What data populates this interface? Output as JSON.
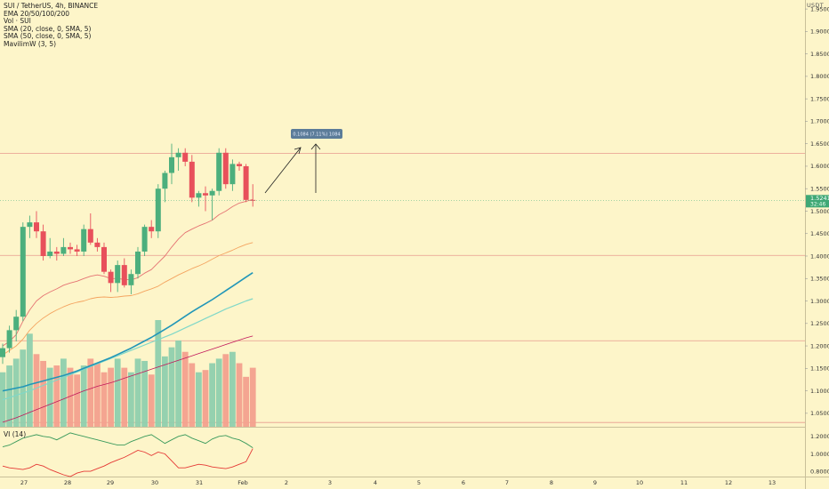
{
  "legend": {
    "symbol": "SUI / TetherUS, 4h, BINANCE",
    "lines": [
      "EMA 20/50/100/200",
      "Vol · SUI",
      "SMA (20, close, 0, SMA, 5)",
      "SMA (50, close, 0, SMA, 5)",
      "MavilimW (3, 5)"
    ]
  },
  "vi_label": "VI (14)",
  "currency": "USDT",
  "price_axis": [
    "1.9500",
    "1.9000",
    "1.8500",
    "1.8000",
    "1.7500",
    "1.7000",
    "1.6500",
    "1.6000",
    "1.5500",
    "1.5000",
    "1.4500",
    "1.4000",
    "1.3500",
    "1.3000",
    "1.2500",
    "1.2000",
    "1.1500",
    "1.1000",
    "1.0500"
  ],
  "vi_axis": [
    "1.2000",
    "1.0000",
    "0.8000"
  ],
  "time_axis": [
    "27",
    "28",
    "29",
    "30",
    "31",
    "Feb",
    "2",
    "3",
    "4",
    "5",
    "6",
    "7",
    "8",
    "9",
    "10",
    "11",
    "12",
    "13"
  ],
  "price_label": {
    "price": "1.5241",
    "countdown": "32:46"
  },
  "measure_label": "0.1084 (7.11%) 1084",
  "colors": {
    "up": "#4caf7d",
    "down": "#e8505b",
    "ema_blue": "#2196b8",
    "ema_orange": "#f4a460",
    "ema_teal": "#80d8c8",
    "ema_red": "#e57373",
    "bg": "#fdf5c9"
  },
  "chart_data": {
    "type": "candlestick",
    "interval": "4h",
    "y_range": [
      1.02,
      1.97
    ],
    "horizontal_levels": [
      1.6288,
      1.4015,
      1.2115,
      1.0295
    ],
    "candles": [
      {
        "o": 1.175,
        "h": 1.205,
        "l": 1.16,
        "c": 1.195
      },
      {
        "o": 1.195,
        "h": 1.245,
        "l": 1.185,
        "c": 1.235
      },
      {
        "o": 1.235,
        "h": 1.28,
        "l": 1.21,
        "c": 1.265
      },
      {
        "o": 1.265,
        "h": 1.475,
        "l": 1.255,
        "c": 1.465
      },
      {
        "o": 1.465,
        "h": 1.49,
        "l": 1.44,
        "c": 1.475
      },
      {
        "o": 1.475,
        "h": 1.5,
        "l": 1.44,
        "c": 1.455
      },
      {
        "o": 1.455,
        "h": 1.47,
        "l": 1.39,
        "c": 1.4
      },
      {
        "o": 1.4,
        "h": 1.44,
        "l": 1.395,
        "c": 1.41
      },
      {
        "o": 1.41,
        "h": 1.42,
        "l": 1.39,
        "c": 1.405
      },
      {
        "o": 1.405,
        "h": 1.44,
        "l": 1.4,
        "c": 1.42
      },
      {
        "o": 1.42,
        "h": 1.43,
        "l": 1.405,
        "c": 1.415
      },
      {
        "o": 1.415,
        "h": 1.425,
        "l": 1.4,
        "c": 1.41
      },
      {
        "o": 1.41,
        "h": 1.47,
        "l": 1.4,
        "c": 1.46
      },
      {
        "o": 1.46,
        "h": 1.495,
        "l": 1.425,
        "c": 1.43
      },
      {
        "o": 1.43,
        "h": 1.44,
        "l": 1.41,
        "c": 1.42
      },
      {
        "o": 1.42,
        "h": 1.43,
        "l": 1.36,
        "c": 1.365
      },
      {
        "o": 1.365,
        "h": 1.37,
        "l": 1.32,
        "c": 1.34
      },
      {
        "o": 1.34,
        "h": 1.39,
        "l": 1.32,
        "c": 1.38
      },
      {
        "o": 1.38,
        "h": 1.395,
        "l": 1.33,
        "c": 1.335
      },
      {
        "o": 1.335,
        "h": 1.37,
        "l": 1.315,
        "c": 1.36
      },
      {
        "o": 1.36,
        "h": 1.42,
        "l": 1.35,
        "c": 1.41
      },
      {
        "o": 1.41,
        "h": 1.47,
        "l": 1.4,
        "c": 1.465
      },
      {
        "o": 1.465,
        "h": 1.48,
        "l": 1.44,
        "c": 1.455
      },
      {
        "o": 1.455,
        "h": 1.56,
        "l": 1.44,
        "c": 1.55
      },
      {
        "o": 1.55,
        "h": 1.59,
        "l": 1.52,
        "c": 1.585
      },
      {
        "o": 1.585,
        "h": 1.65,
        "l": 1.56,
        "c": 1.62
      },
      {
        "o": 1.62,
        "h": 1.64,
        "l": 1.59,
        "c": 1.63
      },
      {
        "o": 1.63,
        "h": 1.64,
        "l": 1.6,
        "c": 1.61
      },
      {
        "o": 1.61,
        "h": 1.625,
        "l": 1.52,
        "c": 1.53
      },
      {
        "o": 1.53,
        "h": 1.545,
        "l": 1.51,
        "c": 1.54
      },
      {
        "o": 1.54,
        "h": 1.555,
        "l": 1.5,
        "c": 1.535
      },
      {
        "o": 1.535,
        "h": 1.55,
        "l": 1.48,
        "c": 1.545
      },
      {
        "o": 1.545,
        "h": 1.64,
        "l": 1.535,
        "c": 1.63
      },
      {
        "o": 1.63,
        "h": 1.64,
        "l": 1.55,
        "c": 1.56
      },
      {
        "o": 1.56,
        "h": 1.615,
        "l": 1.545,
        "c": 1.605
      },
      {
        "o": 1.605,
        "h": 1.61,
        "l": 1.59,
        "c": 1.6
      },
      {
        "o": 1.6,
        "h": 1.605,
        "l": 1.52,
        "c": 1.525
      },
      {
        "o": 1.525,
        "h": 1.56,
        "l": 1.51,
        "c": 1.524
      }
    ],
    "volume": [
      240,
      270,
      300,
      340,
      410,
      320,
      290,
      260,
      270,
      300,
      260,
      230,
      270,
      300,
      280,
      240,
      260,
      300,
      260,
      240,
      300,
      290,
      230,
      470,
      310,
      350,
      380,
      330,
      280,
      240,
      250,
      280,
      300,
      320,
      330,
      280,
      220,
      260
    ],
    "vi_plus": [
      1.08,
      1.1,
      1.14,
      1.18,
      1.2,
      1.22,
      1.2,
      1.19,
      1.16,
      1.2,
      1.24,
      1.22,
      1.2,
      1.18,
      1.16,
      1.14,
      1.12,
      1.1,
      1.1,
      1.14,
      1.17,
      1.2,
      1.22,
      1.17,
      1.12,
      1.16,
      1.2,
      1.22,
      1.18,
      1.15,
      1.12,
      1.17,
      1.2,
      1.21,
      1.18,
      1.16,
      1.12,
      1.07
    ],
    "vi_minus": [
      0.86,
      0.84,
      0.83,
      0.82,
      0.84,
      0.88,
      0.86,
      0.82,
      0.79,
      0.76,
      0.74,
      0.78,
      0.8,
      0.8,
      0.83,
      0.86,
      0.9,
      0.93,
      0.96,
      1.0,
      1.04,
      1.02,
      0.98,
      1.02,
      1.0,
      0.92,
      0.84,
      0.84,
      0.86,
      0.88,
      0.87,
      0.85,
      0.84,
      0.83,
      0.85,
      0.88,
      0.91,
      1.06
    ],
    "vi_range": [
      0.75,
      1.3
    ],
    "ema_blue": [
      1.1,
      1.103,
      1.106,
      1.109,
      1.114,
      1.118,
      1.122,
      1.126,
      1.13,
      1.134,
      1.139,
      1.144,
      1.15,
      1.156,
      1.162,
      1.168,
      1.174,
      1.181,
      1.188,
      1.195,
      1.203,
      1.211,
      1.219,
      1.228,
      1.237,
      1.246,
      1.256,
      1.266,
      1.276,
      1.285,
      1.294,
      1.303,
      1.313,
      1.323,
      1.333,
      1.343,
      1.353,
      1.363
    ],
    "ema_orange": [
      1.18,
      1.19,
      1.2,
      1.215,
      1.235,
      1.25,
      1.262,
      1.272,
      1.28,
      1.287,
      1.293,
      1.297,
      1.3,
      1.305,
      1.308,
      1.309,
      1.308,
      1.309,
      1.311,
      1.312,
      1.316,
      1.322,
      1.327,
      1.333,
      1.342,
      1.35,
      1.358,
      1.365,
      1.372,
      1.378,
      1.385,
      1.393,
      1.401,
      1.407,
      1.413,
      1.42,
      1.426,
      1.43
    ],
    "ema_teal": [
      1.08,
      1.085,
      1.09,
      1.095,
      1.1,
      1.106,
      1.112,
      1.118,
      1.124,
      1.13,
      1.136,
      1.142,
      1.148,
      1.154,
      1.16,
      1.166,
      1.172,
      1.178,
      1.184,
      1.19,
      1.196,
      1.202,
      1.208,
      1.214,
      1.22,
      1.226,
      1.233,
      1.24,
      1.247,
      1.254,
      1.261,
      1.268,
      1.275,
      1.282,
      1.288,
      1.294,
      1.3,
      1.305
    ],
    "ema_red": [
      1.2,
      1.21,
      1.225,
      1.255,
      1.28,
      1.3,
      1.312,
      1.32,
      1.327,
      1.335,
      1.34,
      1.344,
      1.35,
      1.355,
      1.358,
      1.355,
      1.35,
      1.35,
      1.348,
      1.347,
      1.352,
      1.362,
      1.37,
      1.385,
      1.4,
      1.42,
      1.438,
      1.452,
      1.46,
      1.467,
      1.473,
      1.48,
      1.492,
      1.5,
      1.51,
      1.518,
      1.522,
      1.526
    ],
    "vol_ma": [
      1.03,
      1.035,
      1.04,
      1.046,
      1.052,
      1.058,
      1.064,
      1.07,
      1.076,
      1.082,
      1.088,
      1.094,
      1.1,
      1.105,
      1.11,
      1.114,
      1.118,
      1.123,
      1.128,
      1.133,
      1.138,
      1.143,
      1.148,
      1.153,
      1.158,
      1.163,
      1.168,
      1.173,
      1.178,
      1.183,
      1.188,
      1.193,
      1.198,
      1.203,
      1.208,
      1.213,
      1.218,
      1.222
    ]
  }
}
